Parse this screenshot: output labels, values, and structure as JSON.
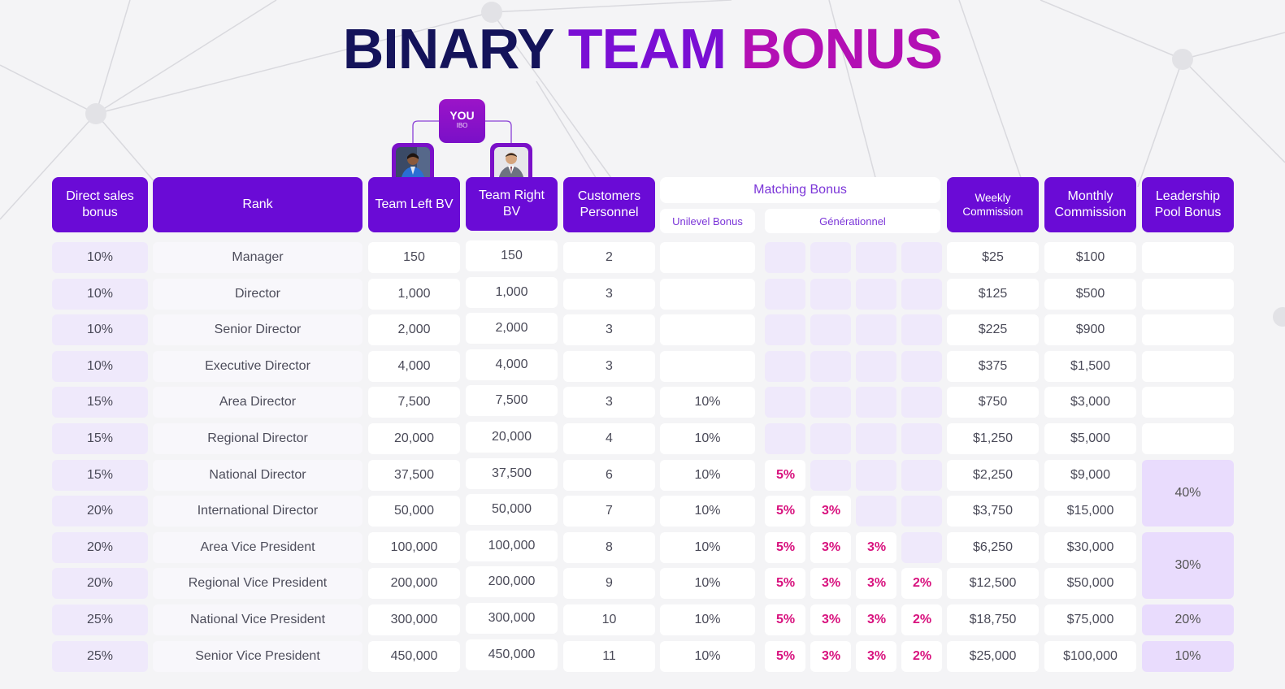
{
  "title": {
    "word1": "BINARY",
    "word2": "TEAM",
    "word3": "BONUS"
  },
  "tree": {
    "you": "YOU",
    "you_sub": "IBO"
  },
  "headers": {
    "direct_sales": "Direct sales bonus",
    "rank": "Rank",
    "team_left": "Team Left BV",
    "team_right": "Team Right BV",
    "customers": "Customers Personnel",
    "matching": "Matching Bonus",
    "unilevel": "Unilevel Bonus",
    "generational": "Générationnel",
    "weekly": "Weekly Commission",
    "monthly": "Monthly Commission",
    "leadership": "Leadership Pool Bonus"
  },
  "rows": [
    {
      "direct": "10%",
      "rank": "Manager",
      "left": "150",
      "right": "150",
      "customers": "2",
      "unilevel": "",
      "gen": [
        "",
        "",
        "",
        ""
      ],
      "weekly": "$25",
      "monthly": "$100"
    },
    {
      "direct": "10%",
      "rank": "Director",
      "left": "1,000",
      "right": "1,000",
      "customers": "3",
      "unilevel": "",
      "gen": [
        "",
        "",
        "",
        ""
      ],
      "weekly": "$125",
      "monthly": "$500"
    },
    {
      "direct": "10%",
      "rank": "Senior Director",
      "left": "2,000",
      "right": "2,000",
      "customers": "3",
      "unilevel": "",
      "gen": [
        "",
        "",
        "",
        ""
      ],
      "weekly": "$225",
      "monthly": "$900"
    },
    {
      "direct": "10%",
      "rank": "Executive Director",
      "left": "4,000",
      "right": "4,000",
      "customers": "3",
      "unilevel": "",
      "gen": [
        "",
        "",
        "",
        ""
      ],
      "weekly": "$375",
      "monthly": "$1,500"
    },
    {
      "direct": "15%",
      "rank": "Area Director",
      "left": "7,500",
      "right": "7,500",
      "customers": "3",
      "unilevel": "10%",
      "gen": [
        "",
        "",
        "",
        ""
      ],
      "weekly": "$750",
      "monthly": "$3,000"
    },
    {
      "direct": "15%",
      "rank": "Regional Director",
      "left": "20,000",
      "right": "20,000",
      "customers": "4",
      "unilevel": "10%",
      "gen": [
        "",
        "",
        "",
        ""
      ],
      "weekly": "$1,250",
      "monthly": "$5,000"
    },
    {
      "direct": "15%",
      "rank": "National Director",
      "left": "37,500",
      "right": "37,500",
      "customers": "6",
      "unilevel": "10%",
      "gen": [
        "5%",
        "",
        "",
        ""
      ],
      "weekly": "$2,250",
      "monthly": "$9,000"
    },
    {
      "direct": "20%",
      "rank": "International Director",
      "left": "50,000",
      "right": "50,000",
      "customers": "7",
      "unilevel": "10%",
      "gen": [
        "5%",
        "3%",
        "",
        ""
      ],
      "weekly": "$3,750",
      "monthly": "$15,000"
    },
    {
      "direct": "20%",
      "rank": "Area Vice President",
      "left": "100,000",
      "right": "100,000",
      "customers": "8",
      "unilevel": "10%",
      "gen": [
        "5%",
        "3%",
        "3%",
        ""
      ],
      "weekly": "$6,250",
      "monthly": "$30,000"
    },
    {
      "direct": "20%",
      "rank": "Regional Vice President",
      "left": "200,000",
      "right": "200,000",
      "customers": "9",
      "unilevel": "10%",
      "gen": [
        "5%",
        "3%",
        "3%",
        "2%"
      ],
      "weekly": "$12,500",
      "monthly": "$50,000"
    },
    {
      "direct": "25%",
      "rank": "National Vice President",
      "left": "300,000",
      "right": "300,000",
      "customers": "10",
      "unilevel": "10%",
      "gen": [
        "5%",
        "3%",
        "3%",
        "2%"
      ],
      "weekly": "$18,750",
      "monthly": "$75,000"
    },
    {
      "direct": "25%",
      "rank": "Senior Vice President",
      "left": "450,000",
      "right": "450,000",
      "customers": "11",
      "unilevel": "10%",
      "gen": [
        "5%",
        "3%",
        "3%",
        "2%"
      ],
      "weekly": "$25,000",
      "monthly": "$100,000"
    }
  ],
  "leadership_pool": [
    {
      "value": "",
      "first_row": 0,
      "rows": 1
    },
    {
      "value": "",
      "first_row": 1,
      "rows": 1
    },
    {
      "value": "",
      "first_row": 2,
      "rows": 1
    },
    {
      "value": "",
      "first_row": 3,
      "rows": 1
    },
    {
      "value": "",
      "first_row": 4,
      "rows": 1
    },
    {
      "value": "",
      "first_row": 5,
      "rows": 1
    },
    {
      "value": "40%",
      "first_row": 6,
      "rows": 2
    },
    {
      "value": "30%",
      "first_row": 8,
      "rows": 2
    },
    {
      "value": "20%",
      "first_row": 10,
      "rows": 1
    },
    {
      "value": "10%",
      "first_row": 11,
      "rows": 1
    }
  ],
  "colors": {
    "header": "#6a0bd6",
    "accent_pink": "#d8127e",
    "title_dark": "#14135a",
    "title_purple": "#7a0fd4",
    "title_magenta": "#b30fb4"
  }
}
